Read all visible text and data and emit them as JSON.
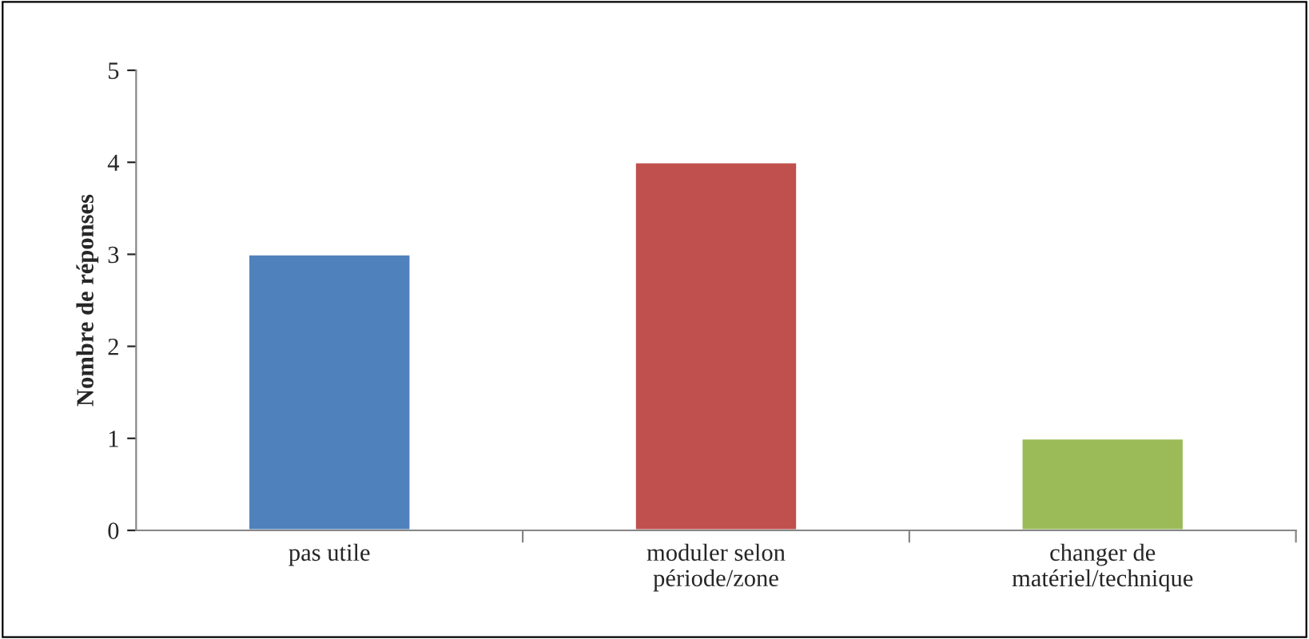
{
  "chart_data": {
    "type": "bar",
    "ylabel": "Nombre de réponses",
    "categories": [
      "pas utile",
      "moduler selon\npériode/zone",
      "changer de\nmatériel/technique"
    ],
    "values": [
      3,
      4,
      1
    ],
    "colors": [
      "#4f81bd",
      "#c0504d",
      "#9bbb59"
    ],
    "ylim": [
      0,
      5
    ],
    "yticks": [
      0,
      1,
      2,
      3,
      4,
      5
    ],
    "grid": false,
    "legend": false
  }
}
